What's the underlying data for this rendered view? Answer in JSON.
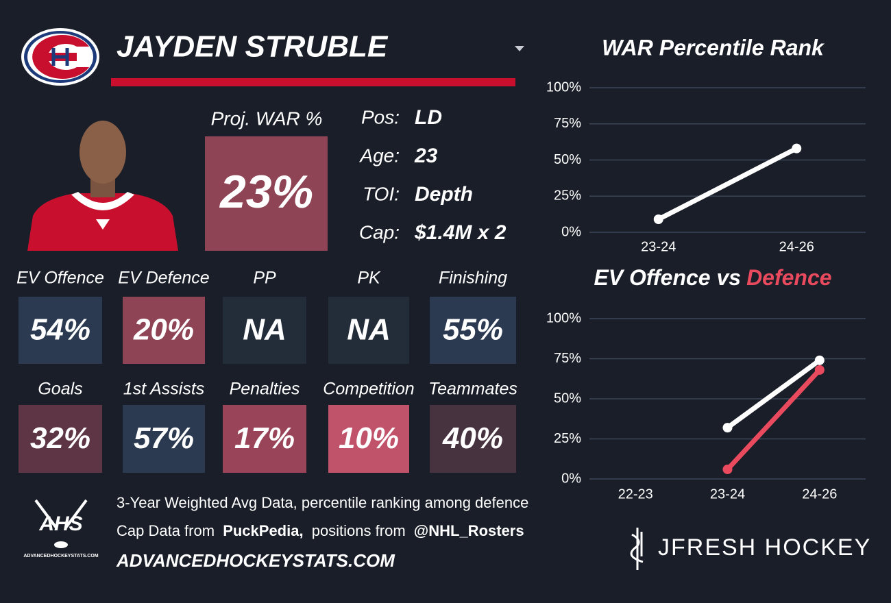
{
  "header": {
    "name": "JAYDEN STRUBLE"
  },
  "proj_war": {
    "label": "Proj. WAR %",
    "value": "23%",
    "color": "#8e4455"
  },
  "bio": [
    {
      "label": "Pos:",
      "value": "LD"
    },
    {
      "label": "Age:",
      "value": "23"
    },
    {
      "label": "TOI:",
      "value": "Depth"
    },
    {
      "label": "Cap:",
      "value": "$1.4M x 2"
    }
  ],
  "tiles": [
    {
      "label": "EV Offence",
      "value": "54%",
      "color": "#2b3a50"
    },
    {
      "label": "EV Defence",
      "value": "20%",
      "color": "#8e4455"
    },
    {
      "label": "PP",
      "value": "NA",
      "color": "#232c39"
    },
    {
      "label": "PK",
      "value": "NA",
      "color": "#232c39"
    },
    {
      "label": "Finishing",
      "value": "55%",
      "color": "#2b3a50"
    },
    {
      "label": "Goals",
      "value": "32%",
      "color": "#5e3544"
    },
    {
      "label": "1st Assists",
      "value": "57%",
      "color": "#2b3a50"
    },
    {
      "label": "Penalties",
      "value": "17%",
      "color": "#9a4459"
    },
    {
      "label": "Competition",
      "value": "10%",
      "color": "#c0526a"
    },
    {
      "label": "Teammates",
      "value": "40%",
      "color": "#47323f"
    }
  ],
  "footer": {
    "line1": "3-Year Weighted Avg Data, percentile ranking among defence",
    "line2": [
      "Cap Data from",
      "PuckPedia,",
      "positions from",
      "@NHL_Rosters"
    ],
    "website": "ADVANCEDHOCKEYSTATS.COM",
    "ahs_logo": "AHS",
    "ahs_sub": "ADVANCEDHOCKEYSTATS.COM",
    "brand": "JFRESH HOCKEY"
  },
  "chart_data": [
    {
      "type": "line",
      "title": "WAR Percentile Rank",
      "categories": [
        "23-24",
        "24-26"
      ],
      "series": [
        {
          "color": "#ffffff",
          "values": [
            9,
            58
          ]
        }
      ],
      "ylim": [
        0,
        100
      ],
      "yticks": [
        {
          "value": 0,
          "label": "0%"
        },
        {
          "value": 25,
          "label": "25%"
        },
        {
          "value": 50,
          "label": "50%"
        },
        {
          "value": 75,
          "label": "75%"
        },
        {
          "value": 100,
          "label": "100%"
        }
      ],
      "grid": true
    },
    {
      "type": "line",
      "title": [
        "EV Offence vs",
        "Defence"
      ],
      "title_colors": [
        "#ffffff",
        "#ea4a5e"
      ],
      "categories": [
        "22-23",
        "23-24",
        "24-26"
      ],
      "series": [
        {
          "color": "#ffffff",
          "values": [
            null,
            32,
            74
          ]
        },
        {
          "color": "#ea4a5e",
          "values": [
            null,
            6,
            68
          ]
        }
      ],
      "ylim": [
        0,
        100
      ],
      "yticks": [
        {
          "value": 0,
          "label": "0%"
        },
        {
          "value": 25,
          "label": "25%"
        },
        {
          "value": 50,
          "label": "50%"
        },
        {
          "value": 75,
          "label": "75%"
        },
        {
          "value": 100,
          "label": "100%"
        }
      ],
      "grid": true
    }
  ]
}
